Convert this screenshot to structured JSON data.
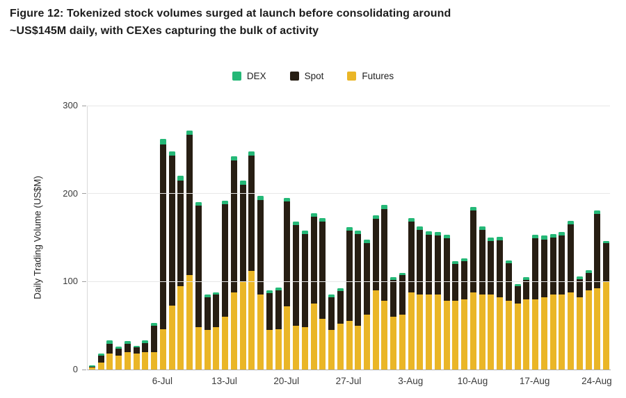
{
  "figure": {
    "title_line1": "Figure 12: Tokenized stock volumes surged at launch before consolidating around",
    "title_line2": "~US$145M daily, with CEXes capturing the bulk of activity"
  },
  "legend": [
    {
      "label": "DEX",
      "color": "#25b877"
    },
    {
      "label": "Spot",
      "color": "#271e13"
    },
    {
      "label": "Futures",
      "color": "#eab627"
    }
  ],
  "chart_data": {
    "type": "bar",
    "stacked": true,
    "title": "Tokenized stock daily trading volume by venue type",
    "xlabel": "",
    "ylabel": "Daily Trading Volume (US$M)",
    "ylim": [
      0,
      300
    ],
    "yticks": [
      0,
      100,
      200,
      300
    ],
    "xticks": [
      "6-Jul",
      "13-Jul",
      "20-Jul",
      "27-Jul",
      "3-Aug",
      "10-Aug",
      "17-Aug",
      "24-Aug"
    ],
    "legend_position": "top",
    "grid": true,
    "categories": [
      "28-Jun",
      "29-Jun",
      "30-Jun",
      "1-Jul",
      "2-Jul",
      "3-Jul",
      "4-Jul",
      "5-Jul",
      "6-Jul",
      "7-Jul",
      "8-Jul",
      "9-Jul",
      "10-Jul",
      "11-Jul",
      "12-Jul",
      "13-Jul",
      "14-Jul",
      "15-Jul",
      "16-Jul",
      "17-Jul",
      "18-Jul",
      "19-Jul",
      "20-Jul",
      "21-Jul",
      "22-Jul",
      "23-Jul",
      "24-Jul",
      "25-Jul",
      "26-Jul",
      "27-Jul",
      "28-Jul",
      "29-Jul",
      "30-Jul",
      "31-Jul",
      "1-Aug",
      "2-Aug",
      "3-Aug",
      "4-Aug",
      "5-Aug",
      "6-Aug",
      "7-Aug",
      "8-Aug",
      "9-Aug",
      "10-Aug",
      "11-Aug",
      "12-Aug",
      "13-Aug",
      "14-Aug",
      "15-Aug",
      "16-Aug",
      "17-Aug",
      "18-Aug",
      "19-Aug",
      "20-Aug",
      "21-Aug",
      "22-Aug",
      "23-Aug",
      "24-Aug",
      "25-Aug"
    ],
    "series": [
      {
        "name": "Futures",
        "color": "#eab627",
        "values": [
          2,
          8,
          18,
          16,
          20,
          18,
          20,
          20,
          46,
          73,
          95,
          107,
          48,
          45,
          48,
          60,
          88,
          100,
          112,
          85,
          45,
          46,
          72,
          50,
          48,
          75,
          58,
          45,
          52,
          55,
          50,
          62,
          90,
          78,
          60,
          62,
          88,
          85,
          85,
          85,
          78,
          78,
          80,
          88,
          85,
          85,
          82,
          78,
          75,
          80,
          80,
          82,
          85,
          85,
          88,
          82,
          90,
          92,
          100
        ]
      },
      {
        "name": "Spot",
        "color": "#271e13",
        "values": [
          1,
          8,
          11,
          8,
          9,
          7,
          10,
          30,
          210,
          170,
          120,
          160,
          138,
          37,
          37,
          128,
          150,
          110,
          131,
          108,
          42,
          44,
          119,
          114,
          106,
          99,
          110,
          37,
          37,
          103,
          104,
          82,
          81,
          104,
          42,
          45,
          80,
          74,
          68,
          67,
          71,
          42,
          43,
          93,
          74,
          61,
          65,
          43,
          20,
          22,
          69,
          66,
          65,
          67,
          77,
          21,
          20,
          85,
          44
        ]
      },
      {
        "name": "DEX",
        "color": "#25b877",
        "values": [
          2,
          2,
          4,
          2,
          3,
          2,
          3,
          3,
          6,
          5,
          5,
          5,
          4,
          3,
          3,
          4,
          4,
          5,
          5,
          4,
          3,
          3,
          4,
          4,
          4,
          4,
          4,
          3,
          3,
          4,
          4,
          4,
          4,
          5,
          3,
          3,
          4,
          4,
          4,
          4,
          4,
          3,
          3,
          4,
          4,
          4,
          4,
          3,
          2,
          3,
          4,
          4,
          4,
          4,
          4,
          3,
          3,
          4,
          2
        ]
      }
    ]
  }
}
